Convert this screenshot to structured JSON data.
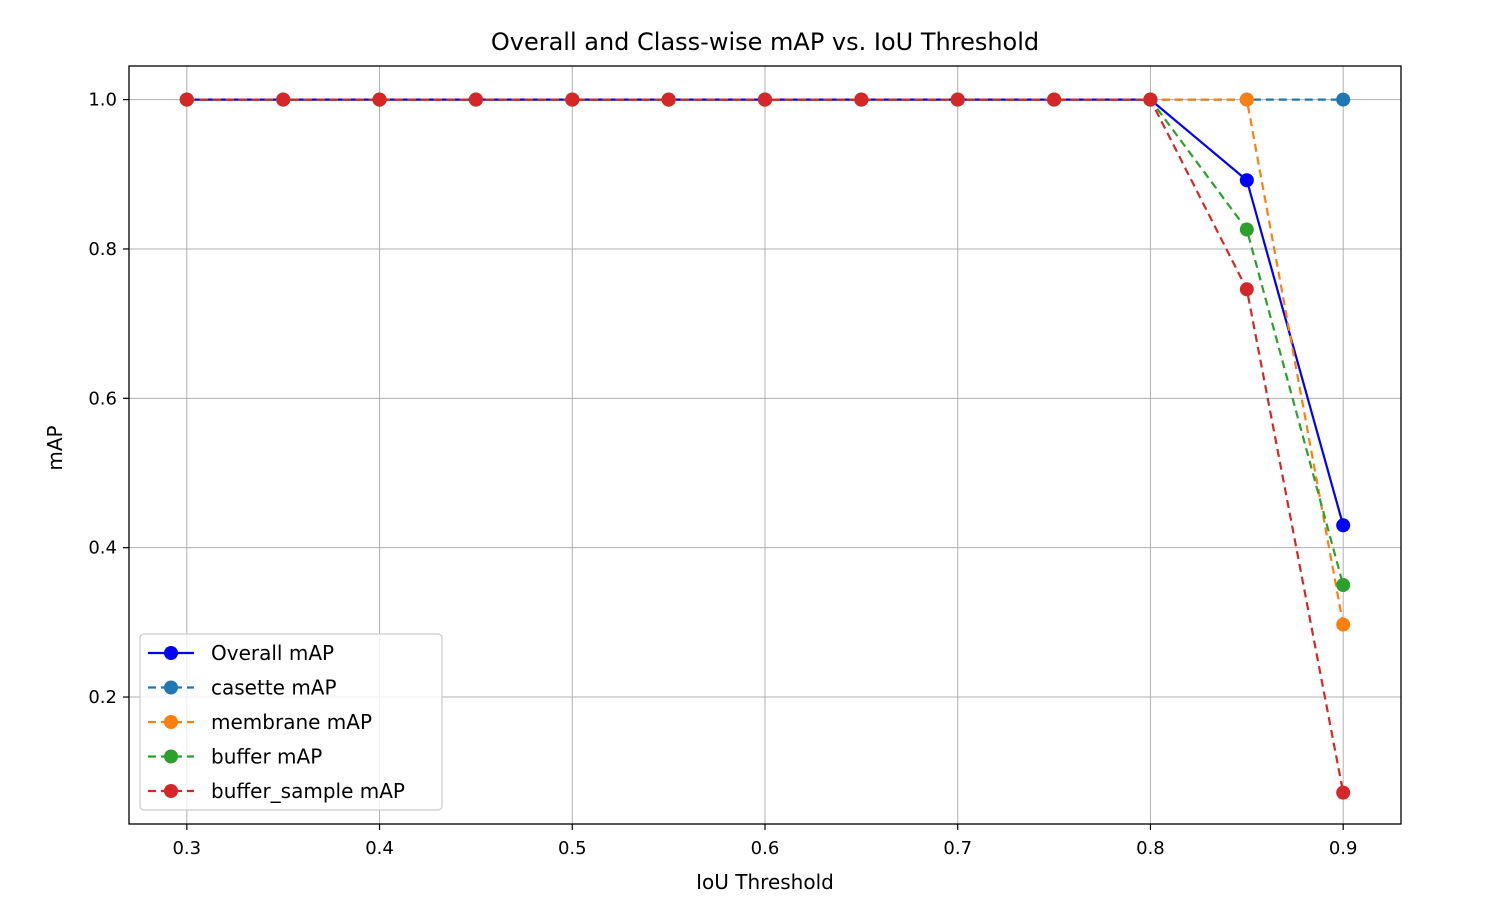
{
  "chart_data": {
    "type": "line",
    "title": "Overall and Class-wise mAP vs. IoU Threshold",
    "xlabel": "IoU Threshold",
    "ylabel": "mAP",
    "x": [
      0.3,
      0.35,
      0.4,
      0.45,
      0.5,
      0.55,
      0.6,
      0.65,
      0.7,
      0.75,
      0.8,
      0.85,
      0.9
    ],
    "xlim": [
      0.27,
      0.93
    ],
    "ylim": [
      0.03,
      1.045
    ],
    "xticks": [
      "0.3",
      "0.4",
      "0.5",
      "0.6",
      "0.7",
      "0.8",
      "0.9"
    ],
    "yticks": [
      "0.2",
      "0.4",
      "0.6",
      "0.8",
      "1.0"
    ],
    "grid": true,
    "legend_position": "lower-left",
    "series": [
      {
        "name": "Overall mAP",
        "color": "#0000ff",
        "dashed": false,
        "values": [
          1.0,
          1.0,
          1.0,
          1.0,
          1.0,
          1.0,
          1.0,
          1.0,
          1.0,
          1.0,
          1.0,
          0.892,
          0.43
        ]
      },
      {
        "name": "casette mAP",
        "color": "#1f77b4",
        "dashed": true,
        "values": [
          1.0,
          1.0,
          1.0,
          1.0,
          1.0,
          1.0,
          1.0,
          1.0,
          1.0,
          1.0,
          1.0,
          1.0,
          1.0
        ]
      },
      {
        "name": "membrane mAP",
        "color": "#ff7f0e",
        "dashed": true,
        "values": [
          1.0,
          1.0,
          1.0,
          1.0,
          1.0,
          1.0,
          1.0,
          1.0,
          1.0,
          1.0,
          1.0,
          1.0,
          0.297
        ]
      },
      {
        "name": "buffer mAP",
        "color": "#2ca02c",
        "dashed": true,
        "values": [
          1.0,
          1.0,
          1.0,
          1.0,
          1.0,
          1.0,
          1.0,
          1.0,
          1.0,
          1.0,
          1.0,
          0.826,
          0.35
        ]
      },
      {
        "name": "buffer_sample mAP",
        "color": "#d62728",
        "dashed": true,
        "values": [
          1.0,
          1.0,
          1.0,
          1.0,
          1.0,
          1.0,
          1.0,
          1.0,
          1.0,
          1.0,
          1.0,
          0.746,
          0.072
        ]
      }
    ]
  }
}
